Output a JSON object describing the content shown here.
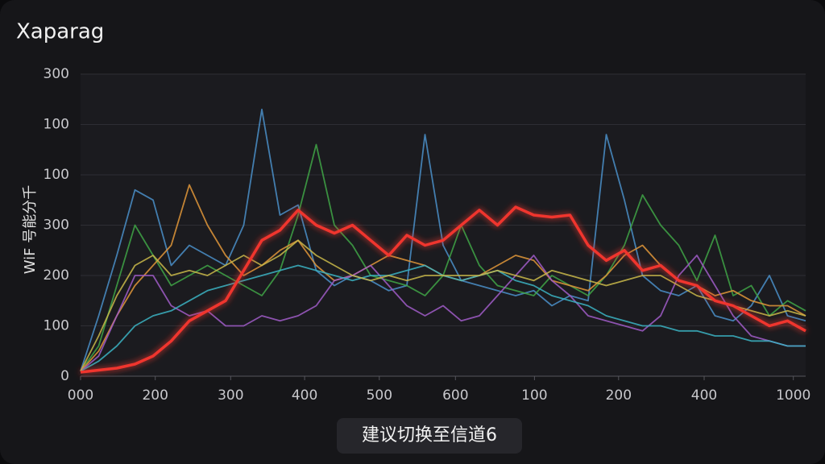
{
  "chart_data": {
    "type": "line",
    "title": "Xaparag",
    "ylabel": "WiF 号能分千",
    "annotation": "建议切换至信道6",
    "xlim": [
      0,
      1000
    ],
    "ylim": [
      0,
      300
    ],
    "xticks": [
      {
        "value": 0,
        "label": "000"
      },
      {
        "value": 103,
        "label": "200"
      },
      {
        "value": 207,
        "label": "300"
      },
      {
        "value": 309,
        "label": "400"
      },
      {
        "value": 412,
        "label": "500"
      },
      {
        "value": 517,
        "label": "600"
      },
      {
        "value": 626,
        "label": "100"
      },
      {
        "value": 742,
        "label": "200"
      },
      {
        "value": 860,
        "label": "400"
      },
      {
        "value": 983,
        "label": "1000"
      }
    ],
    "yticks": [
      0,
      {
        "value": 50,
        "label": "100"
      },
      {
        "value": 100,
        "label": "200"
      },
      {
        "value": 150,
        "label": "300"
      },
      {
        "value": 200,
        "label": "100"
      },
      {
        "value": 250,
        "label": "100"
      },
      {
        "value": 300,
        "label": "300"
      }
    ],
    "grid": true,
    "x": [
      0,
      25,
      50,
      75,
      100,
      125,
      150,
      175,
      200,
      225,
      250,
      275,
      300,
      325,
      350,
      375,
      400,
      425,
      450,
      475,
      500,
      525,
      550,
      575,
      600,
      625,
      650,
      675,
      700,
      725,
      750,
      775,
      800,
      825,
      850,
      875,
      900,
      925,
      950,
      975,
      1000
    ],
    "series": [
      {
        "color": "#4a8fc9",
        "values": [
          5,
          60,
          120,
          185,
          175,
          110,
          130,
          120,
          110,
          150,
          265,
          160,
          170,
          105,
          90,
          100,
          95,
          85,
          90,
          240,
          130,
          95,
          90,
          85,
          80,
          85,
          70,
          80,
          75,
          240,
          175,
          100,
          85,
          80,
          90,
          60,
          55,
          70,
          100,
          60,
          55
        ]
      },
      {
        "color": "#3fa447",
        "values": [
          5,
          30,
          90,
          150,
          120,
          90,
          100,
          110,
          100,
          90,
          80,
          105,
          160,
          230,
          150,
          130,
          100,
          95,
          90,
          80,
          100,
          150,
          110,
          90,
          85,
          80,
          100,
          90,
          80,
          100,
          130,
          180,
          150,
          130,
          95,
          140,
          80,
          90,
          60,
          75,
          65
        ]
      },
      {
        "color": "#e0963a",
        "values": [
          5,
          25,
          60,
          90,
          110,
          130,
          190,
          150,
          120,
          100,
          110,
          125,
          135,
          110,
          95,
          100,
          110,
          120,
          115,
          110,
          100,
          95,
          100,
          110,
          120,
          115,
          95,
          90,
          85,
          100,
          120,
          130,
          110,
          95,
          90,
          80,
          85,
          75,
          70,
          70,
          60
        ]
      },
      {
        "color": "#a05cc8",
        "values": [
          5,
          20,
          60,
          100,
          100,
          70,
          60,
          65,
          50,
          50,
          60,
          55,
          60,
          70,
          95,
          100,
          110,
          90,
          70,
          60,
          70,
          55,
          60,
          80,
          100,
          120,
          95,
          80,
          60,
          55,
          50,
          45,
          60,
          100,
          120,
          90,
          60,
          40,
          35,
          30,
          30
        ]
      },
      {
        "color": "#3bb3c3",
        "values": [
          5,
          15,
          30,
          50,
          60,
          65,
          75,
          85,
          90,
          95,
          100,
          105,
          110,
          105,
          100,
          95,
          100,
          100,
          105,
          110,
          100,
          95,
          100,
          105,
          95,
          90,
          80,
          75,
          70,
          60,
          55,
          50,
          50,
          45,
          45,
          40,
          40,
          35,
          35,
          30,
          30
        ]
      },
      {
        "color": "#c9b84a",
        "values": [
          5,
          40,
          80,
          110,
          120,
          100,
          105,
          100,
          110,
          120,
          110,
          120,
          135,
          120,
          110,
          100,
          95,
          100,
          95,
          100,
          100,
          100,
          100,
          105,
          100,
          95,
          105,
          100,
          95,
          90,
          95,
          100,
          100,
          90,
          80,
          75,
          70,
          65,
          60,
          65,
          60
        ]
      },
      {
        "color": "#f0352d",
        "values": [
          4,
          6,
          8,
          12,
          20,
          35,
          55,
          65,
          75,
          105,
          135,
          145,
          165,
          150,
          142,
          150,
          135,
          120,
          140,
          130,
          135,
          150,
          165,
          150,
          168,
          160,
          158,
          160,
          130,
          115,
          125,
          105,
          110,
          95,
          90,
          75,
          70,
          60,
          50,
          55,
          45
        ]
      }
    ]
  }
}
